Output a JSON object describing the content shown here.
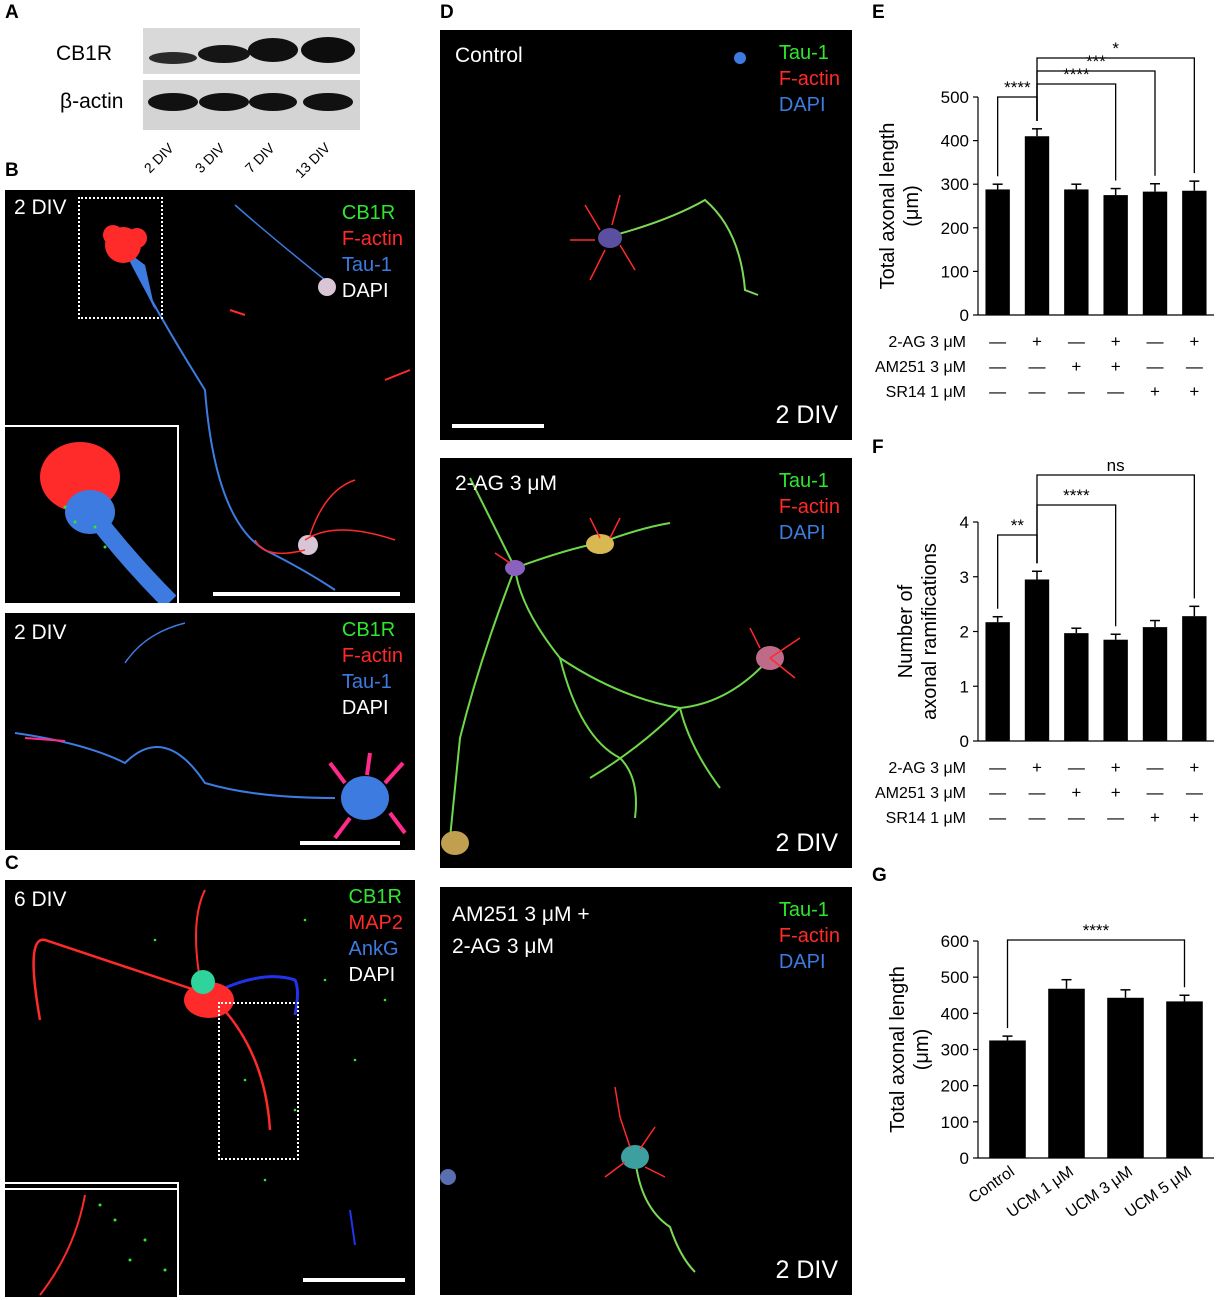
{
  "panels": {
    "A": {
      "letter": "A",
      "blots": [
        {
          "label": "CB1R"
        },
        {
          "label": "β-actin"
        }
      ],
      "lanes": [
        "2 DIV",
        "3 DIV",
        "7 DIV",
        "13 DIV"
      ]
    },
    "B": {
      "letter": "B",
      "top": {
        "div": "2 DIV",
        "legend": [
          "CB1R",
          "F-actin",
          "Tau-1",
          "DAPI"
        ]
      },
      "bottom": {
        "div": "2 DIV",
        "legend": [
          "CB1R",
          "F-actin",
          "Tau-1",
          "DAPI"
        ]
      }
    },
    "C": {
      "letter": "C",
      "div": "6 DIV",
      "legend": [
        "CB1R",
        "MAP2",
        "AnkG",
        "DAPI"
      ]
    },
    "D": {
      "letter": "D",
      "images": [
        {
          "condition": "Control",
          "legend": [
            "Tau-1",
            "F-actin",
            "DAPI"
          ],
          "div": "2 DIV"
        },
        {
          "condition": "2-AG 3 μM",
          "legend": [
            "Tau-1",
            "F-actin",
            "DAPI"
          ],
          "div": "2 DIV"
        },
        {
          "condition_line1": "AM251 3 μM +",
          "condition_line2": "2-AG 3 μM",
          "legend": [
            "Tau-1",
            "F-actin",
            "DAPI"
          ],
          "div": "2 DIV"
        }
      ]
    },
    "E": {
      "letter": "E"
    },
    "F": {
      "letter": "F"
    },
    "G": {
      "letter": "G"
    }
  },
  "colors": {
    "green": "#2fe62f",
    "red": "#ff2a2a",
    "blue": "#3d7be0",
    "white": "#ffffff",
    "bar": "#000000"
  },
  "chart_data": [
    {
      "panel": "E",
      "type": "bar",
      "ylabel_line1": "Total axonal length",
      "ylabel_line2": "(μm)",
      "ylim": [
        0,
        500
      ],
      "yticks": [
        "0",
        "100",
        "200",
        "300",
        "400",
        "500"
      ],
      "values": [
        288,
        410,
        288,
        275,
        283,
        285
      ],
      "errors": [
        12,
        17,
        12,
        15,
        18,
        22
      ],
      "conditions": [
        {
          "label": "2-AG 3 μM",
          "signs": [
            "—",
            "+",
            "—",
            "+",
            "—",
            "+"
          ]
        },
        {
          "label": "AM251 3 μM",
          "signs": [
            "—",
            "—",
            "+",
            "+",
            "—",
            "—"
          ]
        },
        {
          "label": "SR14 1 μM",
          "signs": [
            "—",
            "—",
            "—",
            "—",
            "+",
            "+"
          ]
        }
      ],
      "significance": [
        {
          "from": 0,
          "to": 1,
          "label": "****"
        },
        {
          "from": 1,
          "to": 3,
          "label": "****"
        },
        {
          "from": 1,
          "to": 4,
          "label": "***"
        },
        {
          "from": 1,
          "to": 5,
          "label": "*"
        }
      ]
    },
    {
      "panel": "F",
      "type": "bar",
      "ylabel_line1": "Number of",
      "ylabel_line2": "axonal ramifications",
      "ylim": [
        0,
        4
      ],
      "yticks": [
        "0",
        "1",
        "2",
        "3",
        "4"
      ],
      "values": [
        2.17,
        2.95,
        1.97,
        1.85,
        2.08,
        2.28
      ],
      "errors": [
        0.1,
        0.15,
        0.09,
        0.1,
        0.12,
        0.18
      ],
      "conditions": [
        {
          "label": "2-AG 3 μM",
          "signs": [
            "—",
            "+",
            "—",
            "+",
            "—",
            "+"
          ]
        },
        {
          "label": "AM251 3 μM",
          "signs": [
            "—",
            "—",
            "+",
            "+",
            "—",
            "—"
          ]
        },
        {
          "label": "SR14 1 μM",
          "signs": [
            "—",
            "—",
            "—",
            "—",
            "+",
            "+"
          ]
        }
      ],
      "significance": [
        {
          "from": 0,
          "to": 1,
          "label": "**"
        },
        {
          "from": 1,
          "to": 3,
          "label": "****"
        },
        {
          "from": 1,
          "to": 5,
          "label": "ns"
        }
      ]
    },
    {
      "panel": "G",
      "type": "bar",
      "ylabel_line1": "Total axonal length",
      "ylabel_line2": "(μm)",
      "ylim": [
        0,
        600
      ],
      "yticks": [
        "0",
        "100",
        "200",
        "300",
        "400",
        "500",
        "600"
      ],
      "categories": [
        "Control",
        "UCM 1 μM",
        "UCM 3 μM",
        "UCM 5 μM"
      ],
      "values": [
        325,
        468,
        443,
        433
      ],
      "errors": [
        12,
        25,
        22,
        17
      ],
      "significance": [
        {
          "from": 0,
          "to": 3,
          "label": "****"
        }
      ]
    }
  ]
}
